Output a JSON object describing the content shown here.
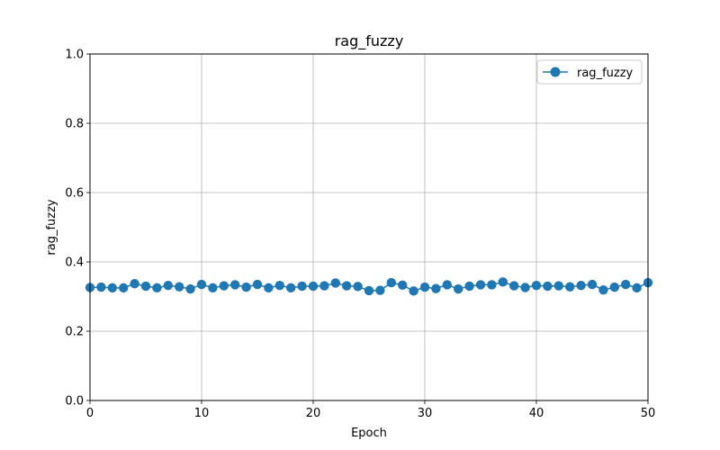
{
  "chart_data": {
    "type": "line",
    "title": "rag_fuzzy",
    "xlabel": "Epoch",
    "ylabel": "rag_fuzzy",
    "xlim": [
      0,
      50
    ],
    "ylim": [
      0,
      1
    ],
    "x_ticks": [
      0,
      10,
      20,
      30,
      40,
      50
    ],
    "y_ticks": [
      0.0,
      0.2,
      0.4,
      0.6,
      0.8,
      1.0
    ],
    "x_tick_labels": [
      "0",
      "10",
      "20",
      "30",
      "40",
      "50"
    ],
    "y_tick_labels": [
      "0.0",
      "0.2",
      "0.4",
      "0.6",
      "0.8",
      "1.0"
    ],
    "grid": true,
    "legend_position": "top-right",
    "series": [
      {
        "name": "rag_fuzzy",
        "color": "#1f77b4",
        "marker": "circle",
        "x": [
          0,
          1,
          2,
          3,
          4,
          5,
          6,
          7,
          8,
          9,
          10,
          11,
          12,
          13,
          14,
          15,
          16,
          17,
          18,
          19,
          20,
          21,
          22,
          23,
          24,
          25,
          26,
          27,
          28,
          29,
          30,
          31,
          32,
          33,
          34,
          35,
          36,
          37,
          38,
          39,
          40,
          41,
          42,
          43,
          44,
          45,
          46,
          47,
          48,
          49,
          50
        ],
        "y": [
          0.326,
          0.327,
          0.325,
          0.325,
          0.337,
          0.33,
          0.325,
          0.332,
          0.328,
          0.322,
          0.335,
          0.325,
          0.331,
          0.334,
          0.327,
          0.335,
          0.325,
          0.332,
          0.325,
          0.33,
          0.33,
          0.331,
          0.339,
          0.331,
          0.329,
          0.317,
          0.318,
          0.34,
          0.333,
          0.316,
          0.327,
          0.323,
          0.334,
          0.322,
          0.33,
          0.334,
          0.334,
          0.342,
          0.331,
          0.326,
          0.332,
          0.33,
          0.331,
          0.328,
          0.332,
          0.335,
          0.319,
          0.327,
          0.335,
          0.325,
          0.34
        ]
      }
    ]
  }
}
